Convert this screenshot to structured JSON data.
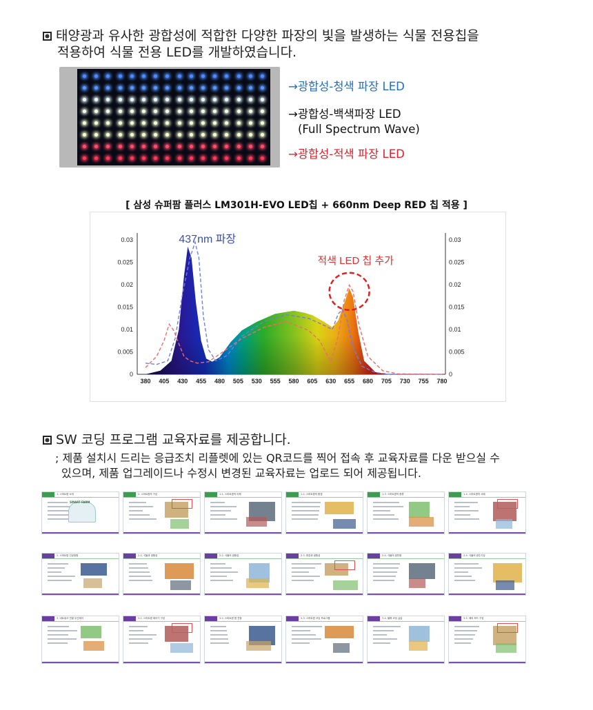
{
  "section1": {
    "heading_line1": "태양광과 유사한 광합성에 적합한 다양한 파장의 빛을 발생하는 식물 전용칩을",
    "heading_line2": "적용하여 식물 전용 LED를 개발하였습니다."
  },
  "led_labels": {
    "blue": "→광합성-청색 파장 LED",
    "white_line1": "→광합성-백색파장 LED",
    "white_line2": "(Full Spectrum Wave)",
    "red": "→광합성-적색 파장 LED"
  },
  "colors": {
    "blue_label": "#1f6fc4",
    "red_label": "#e0202a",
    "slide_header_green": "#3f9a52",
    "slide_header_purple": "#6b3fa0",
    "slide_footer": "#7a4fb0"
  },
  "chart_caption": "[ 삼성 슈퍼팜 플러스 LM301H-EVO LED칩 + 660nm Deep RED 칩 적용 ]",
  "chart_data": {
    "type": "area",
    "title": "",
    "annotations": [
      "437nm 파장",
      "적색 LED 칩 추가"
    ],
    "x_ticks": [
      380,
      405,
      430,
      455,
      480,
      505,
      530,
      555,
      580,
      605,
      630,
      655,
      680,
      705,
      730,
      755,
      780
    ],
    "y_ticks_left": [
      "0.03",
      "0.025",
      "0.02",
      "0.015",
      "0.01",
      "0.005",
      "0"
    ],
    "y_ticks_right": [
      "0.03",
      "0.025",
      "0.02",
      "0.015",
      "0.01",
      "0.005",
      "0"
    ],
    "xlim": [
      380,
      780
    ],
    "ylim": [
      0,
      0.03
    ],
    "series": [
      {
        "style": "filled-spectrum",
        "x": [
          380,
          400,
          415,
          425,
          432,
          437,
          442,
          448,
          455,
          462,
          470,
          480,
          495,
          510,
          530,
          555,
          580,
          595,
          605,
          620,
          632,
          640,
          648,
          655,
          660,
          667,
          675,
          690,
          705,
          780
        ],
        "y": [
          0.0,
          0.0008,
          0.003,
          0.01,
          0.022,
          0.0285,
          0.026,
          0.016,
          0.0075,
          0.0035,
          0.0028,
          0.0038,
          0.0072,
          0.0098,
          0.0117,
          0.0135,
          0.0142,
          0.0137,
          0.0132,
          0.0118,
          0.0105,
          0.012,
          0.0158,
          0.0192,
          0.0172,
          0.0095,
          0.003,
          0.0005,
          0.0,
          0.0
        ]
      },
      {
        "style": "dashed-blue",
        "x": [
          380,
          395,
          410,
          420,
          430,
          440,
          447,
          452,
          458,
          465,
          475,
          490,
          510,
          540,
          570,
          600,
          620,
          632,
          640,
          646,
          652,
          660,
          672,
          690,
          710,
          780
        ],
        "y": [
          0.0025,
          0.0022,
          0.003,
          0.008,
          0.018,
          0.026,
          0.0295,
          0.026,
          0.013,
          0.0055,
          0.003,
          0.0042,
          0.0085,
          0.0118,
          0.0133,
          0.0125,
          0.011,
          0.01,
          0.0135,
          0.0145,
          0.012,
          0.006,
          0.0018,
          0.0004,
          0.0,
          0.0
        ]
      },
      {
        "style": "dashed-red",
        "x": [
          380,
          395,
          405,
          412,
          418,
          425,
          432,
          440,
          450,
          465,
          480,
          510,
          540,
          570,
          600,
          615,
          630,
          640,
          648,
          655,
          660,
          668,
          680,
          700,
          720,
          780
        ],
        "y": [
          0.0015,
          0.004,
          0.0075,
          0.0112,
          0.0098,
          0.0068,
          0.004,
          0.003,
          0.0025,
          0.0028,
          0.0045,
          0.008,
          0.0105,
          0.0118,
          0.0098,
          0.0075,
          0.0028,
          0.0085,
          0.0165,
          0.0199,
          0.0185,
          0.011,
          0.004,
          0.0008,
          0.0001,
          0.0
        ]
      }
    ]
  },
  "section2": {
    "heading": "SW 코딩 프로그램 교육자료를 제공합니다.",
    "sub_line1": "; 제품 설치시 드리는 응급조치 리플렛에 있는 QR코드를 찍어 접속 후 교육자료를 다운 받으실 수",
    "sub_line2": "있으며, 제품 업그레이드나 수정시 변경된 교육자료는 업로드 되어 제공됩니다."
  },
  "slides": [
    {
      "title": "1. 스마트팜 소개",
      "accent": "green",
      "smartfarm": "SMART FARM"
    },
    {
      "title": "2. 스마트팜의 구성",
      "accent": "green"
    },
    {
      "title": "1-1. 스마트팜의 이해",
      "accent": "green"
    },
    {
      "title": "1-2. 스마트팜의 환경",
      "accent": "green"
    },
    {
      "title": "1-3. 스마트팜의 종류",
      "accent": "green"
    },
    {
      "title": "1-4. 스마트팜의 사례",
      "accent": "green"
    },
    {
      "title": "2. 스마트팜 인공광원",
      "accent": "purple"
    },
    {
      "title": "2-1. 식물과 광합성",
      "accent": "purple"
    },
    {
      "title": "2-2. 식물의 광합성",
      "accent": "purple"
    },
    {
      "title": "2-3. 파장과 광합성",
      "accent": "purple"
    },
    {
      "title": "2-4. 식물의 광반응",
      "accent": "purple"
    },
    {
      "title": "2-5. 식물의 광주기성",
      "accent": "purple"
    },
    {
      "title": "3. 네트워크 연결 무선제어",
      "accent": "purple"
    },
    {
      "title": "3-1. 스마트팜 제어기 구성",
      "accent": "purple"
    },
    {
      "title": "3-2. 스마트팜 앱 연동",
      "accent": "purple"
    },
    {
      "title": "3-3. 스마트팜 코딩 프로그램",
      "accent": "purple"
    },
    {
      "title": "3-4. 블록 코딩 실습",
      "accent": "purple"
    },
    {
      "title": "3-5. 제어 보드 구성",
      "accent": "purple"
    }
  ]
}
